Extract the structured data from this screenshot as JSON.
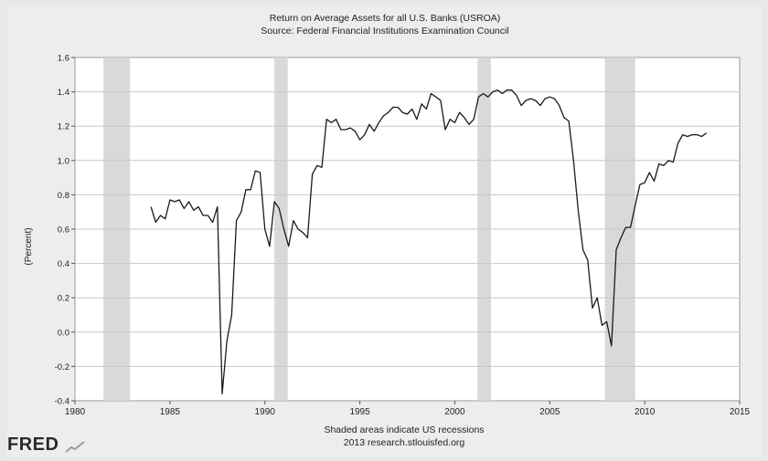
{
  "chart_data": {
    "type": "line",
    "title": "Return on Average Assets for all U.S. Banks (USROA)",
    "subtitle": "Source: Federal Financial Institutions Examination Council",
    "ylabel": "(Percent)",
    "xlabel": "",
    "footer": [
      "Shaded areas indicate US recessions",
      "2013 research.stlouisfed.org"
    ],
    "xlim": [
      1980,
      2015
    ],
    "ylim": [
      -0.4,
      1.6
    ],
    "x_ticks": [
      1980,
      1985,
      1990,
      1995,
      2000,
      2005,
      2010,
      2015
    ],
    "x_tick_labels": [
      "1980",
      "1985",
      "1990",
      "1995",
      "2000",
      "2005",
      "2010",
      "2015"
    ],
    "y_ticks": [
      -0.4,
      -0.2,
      0.0,
      0.2,
      0.4,
      0.6,
      0.8,
      1.0,
      1.2,
      1.4,
      1.6
    ],
    "y_tick_labels": [
      "-0.4",
      "-0.2",
      "0.0",
      "0.2",
      "0.4",
      "0.6",
      "0.8",
      "1.0",
      "1.2",
      "1.4",
      "1.6"
    ],
    "grid": true,
    "recessions": [
      [
        1981.5,
        1982.9
      ],
      [
        1990.5,
        1991.2
      ],
      [
        2001.2,
        2001.9
      ],
      [
        2007.9,
        2009.5
      ]
    ],
    "series": [
      {
        "x": [
          1984.0,
          1984.25,
          1984.5,
          1984.75,
          1985.0,
          1985.25,
          1985.5,
          1985.75,
          1986.0,
          1986.25,
          1986.5,
          1986.75,
          1987.0,
          1987.25,
          1987.5,
          1987.75,
          1988.0,
          1988.25,
          1988.5,
          1988.75,
          1989.0,
          1989.25,
          1989.5,
          1989.75,
          1990.0,
          1990.25,
          1990.5,
          1990.75,
          1991.0,
          1991.25,
          1991.5,
          1991.75,
          1992.0,
          1992.25,
          1992.5,
          1992.75,
          1993.0,
          1993.25,
          1993.5,
          1993.75,
          1994.0,
          1994.25,
          1994.5,
          1994.75,
          1995.0,
          1995.25,
          1995.5,
          1995.75,
          1996.0,
          1996.25,
          1996.5,
          1996.75,
          1997.0,
          1997.25,
          1997.5,
          1997.75,
          1998.0,
          1998.25,
          1998.5,
          1998.75,
          1999.0,
          1999.25,
          1999.5,
          1999.75,
          2000.0,
          2000.25,
          2000.5,
          2000.75,
          2001.0,
          2001.25,
          2001.5,
          2001.75,
          2002.0,
          2002.25,
          2002.5,
          2002.75,
          2003.0,
          2003.25,
          2003.5,
          2003.75,
          2004.0,
          2004.25,
          2004.5,
          2004.75,
          2005.0,
          2005.25,
          2005.5,
          2005.75,
          2006.0,
          2006.25,
          2006.5,
          2006.75,
          2007.0,
          2007.25,
          2007.5,
          2007.75,
          2008.0,
          2008.25,
          2008.5,
          2008.75,
          2009.0,
          2009.25,
          2009.5,
          2009.75,
          2010.0,
          2010.25,
          2010.5,
          2010.75,
          2011.0,
          2011.25,
          2011.5,
          2011.75,
          2012.0,
          2012.25,
          2012.5,
          2012.75,
          2013.0,
          2013.25
        ],
        "y": [
          0.73,
          0.64,
          0.68,
          0.66,
          0.77,
          0.76,
          0.77,
          0.72,
          0.76,
          0.71,
          0.73,
          0.68,
          0.68,
          0.64,
          0.73,
          -0.36,
          -0.05,
          0.1,
          0.65,
          0.7,
          0.83,
          0.83,
          0.94,
          0.93,
          0.6,
          0.5,
          0.76,
          0.72,
          0.6,
          0.5,
          0.65,
          0.6,
          0.58,
          0.55,
          0.92,
          0.97,
          0.96,
          1.24,
          1.22,
          1.24,
          1.18,
          1.18,
          1.19,
          1.17,
          1.12,
          1.15,
          1.21,
          1.17,
          1.22,
          1.26,
          1.28,
          1.31,
          1.31,
          1.28,
          1.27,
          1.3,
          1.24,
          1.33,
          1.3,
          1.39,
          1.37,
          1.35,
          1.18,
          1.24,
          1.22,
          1.28,
          1.25,
          1.21,
          1.24,
          1.37,
          1.39,
          1.37,
          1.4,
          1.41,
          1.39,
          1.41,
          1.41,
          1.38,
          1.32,
          1.35,
          1.36,
          1.35,
          1.32,
          1.36,
          1.37,
          1.36,
          1.32,
          1.25,
          1.23,
          1.0,
          0.71,
          0.48,
          0.42,
          0.14,
          0.2,
          0.04,
          0.06,
          -0.08,
          0.48,
          0.55,
          0.61,
          0.61,
          0.74,
          0.86,
          0.87,
          0.93,
          0.88,
          0.98,
          0.97,
          1.0,
          0.99,
          1.1,
          1.15,
          1.14,
          1.15,
          1.15,
          1.14,
          1.16
        ]
      }
    ]
  },
  "branding": {
    "logo_text": "FRED"
  }
}
